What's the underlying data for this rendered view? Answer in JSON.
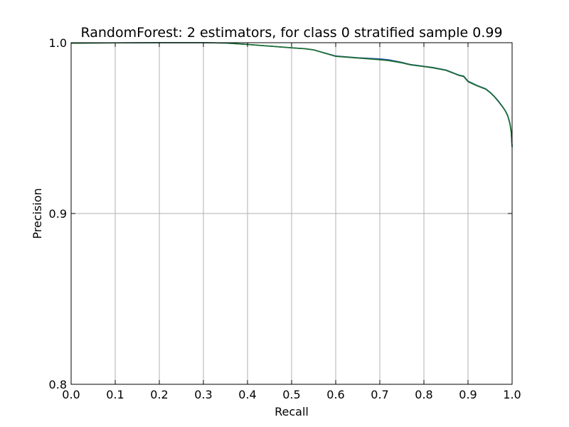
{
  "chart_data": {
    "type": "line",
    "title": "RandomForest: 2 estimators, for class 0 stratified sample 0.99",
    "xlabel": "Recall",
    "ylabel": "Precision",
    "xlim": [
      0.0,
      1.0
    ],
    "ylim": [
      0.8,
      1.0
    ],
    "xticks": [
      "0.0",
      "0.1",
      "0.2",
      "0.3",
      "0.4",
      "0.5",
      "0.6",
      "0.7",
      "0.8",
      "0.9",
      "1.0"
    ],
    "yticks": [
      "0.8",
      "0.9",
      "1.0"
    ],
    "grid": true,
    "legend": "none",
    "series": [
      {
        "color": "#1f4e9c",
        "x": [
          0.0,
          0.1,
          0.2,
          0.25,
          0.3,
          0.35,
          0.4,
          0.45,
          0.5,
          0.53,
          0.55,
          0.6,
          0.65,
          0.7,
          0.72,
          0.75,
          0.77,
          0.8,
          0.82,
          0.85,
          0.87,
          0.88,
          0.89,
          0.9,
          0.92,
          0.94,
          0.95,
          0.96,
          0.97,
          0.98,
          0.985,
          0.99,
          0.995,
          0.998,
          1.0
        ],
        "y": [
          0.9997,
          0.9999,
          1.0,
          1.0,
          1.0,
          0.9998,
          0.999,
          0.998,
          0.997,
          0.9965,
          0.9958,
          0.9922,
          0.9912,
          0.9905,
          0.99,
          0.9885,
          0.9872,
          0.9862,
          0.9855,
          0.984,
          0.982,
          0.981,
          0.9805,
          0.9775,
          0.975,
          0.973,
          0.971,
          0.9685,
          0.9655,
          0.962,
          0.96,
          0.9575,
          0.953,
          0.948,
          0.939
        ]
      },
      {
        "color": "#1a6e2e",
        "x": [
          0.0,
          0.1,
          0.2,
          0.25,
          0.3,
          0.35,
          0.4,
          0.45,
          0.5,
          0.53,
          0.55,
          0.6,
          0.65,
          0.7,
          0.72,
          0.75,
          0.77,
          0.8,
          0.82,
          0.85,
          0.87,
          0.88,
          0.89,
          0.9,
          0.92,
          0.94,
          0.95,
          0.96,
          0.97,
          0.98,
          0.985,
          0.99,
          0.995,
          0.998,
          1.0
        ],
        "y": [
          0.9997,
          0.9999,
          1.0,
          1.0,
          1.0,
          0.9998,
          0.999,
          0.998,
          0.997,
          0.9965,
          0.9958,
          0.992,
          0.991,
          0.99,
          0.9895,
          0.9882,
          0.987,
          0.986,
          0.9853,
          0.9838,
          0.9818,
          0.9808,
          0.9802,
          0.9772,
          0.9748,
          0.9728,
          0.9708,
          0.9683,
          0.9652,
          0.9618,
          0.9598,
          0.9572,
          0.9525,
          0.9475,
          0.939
        ]
      }
    ]
  }
}
